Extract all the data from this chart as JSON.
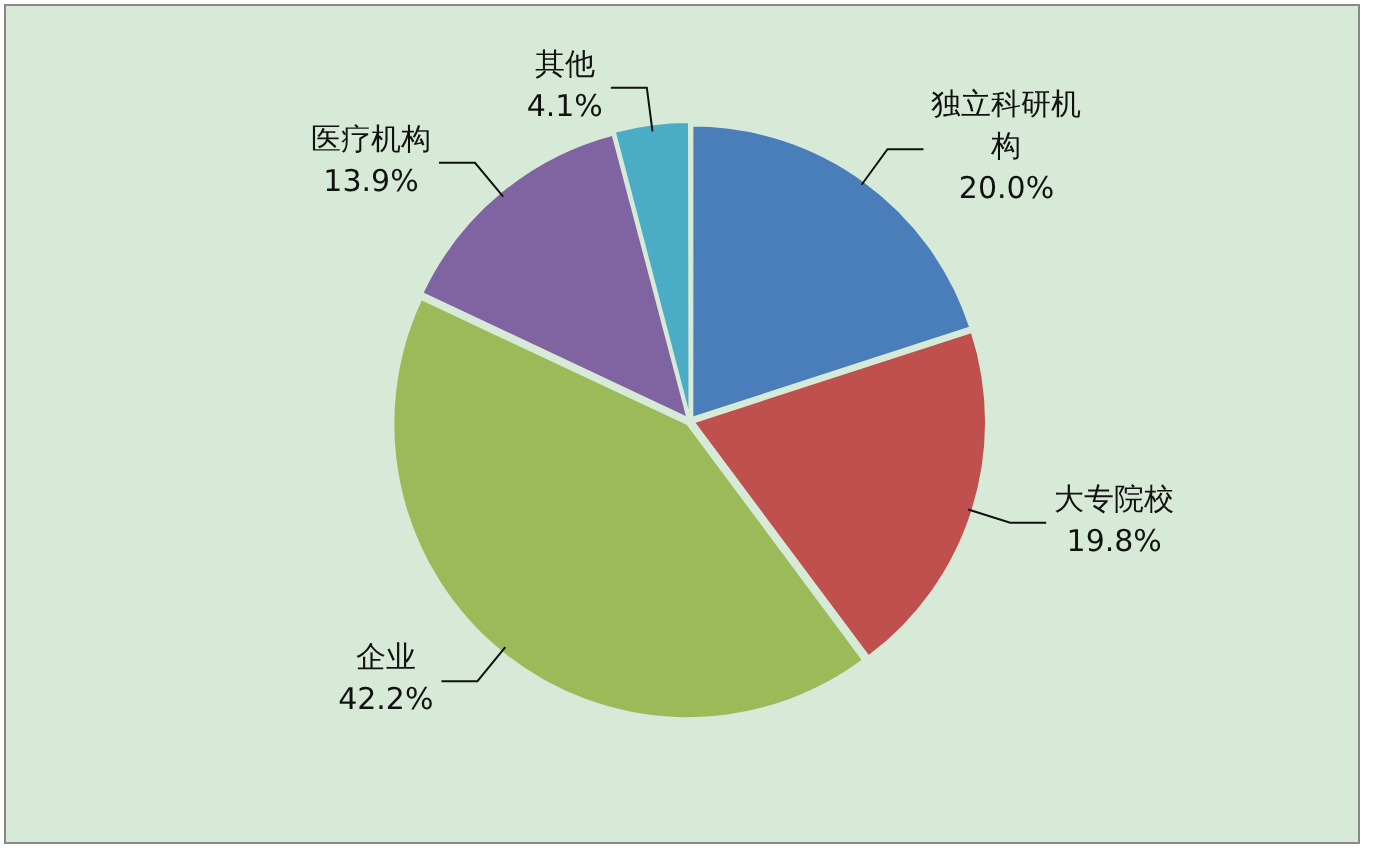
{
  "chart_data": {
    "type": "pie",
    "categories": [
      "独立科研机构",
      "大专院校",
      "企业",
      "医疗机构",
      "其他"
    ],
    "values": [
      20.0,
      19.8,
      42.2,
      13.9,
      4.1
    ],
    "value_labels": [
      "20.0%",
      "19.8%",
      "42.2%",
      "13.9%",
      "4.1%"
    ],
    "colors": [
      "#4a7ebb",
      "#c0504d",
      "#9bbb59",
      "#8064a2",
      "#4bacc6"
    ],
    "legend": false
  }
}
